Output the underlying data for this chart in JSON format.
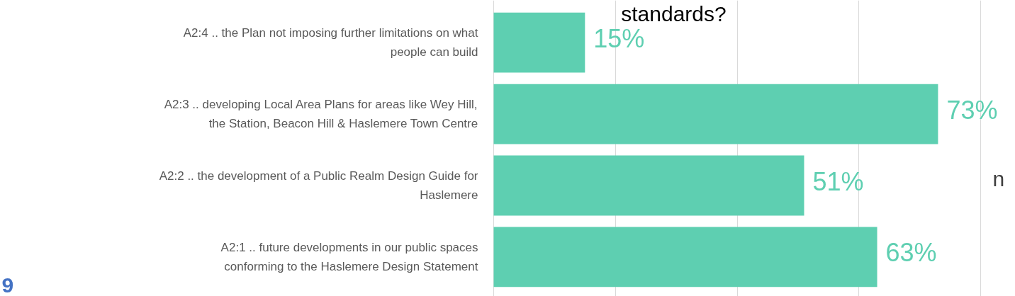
{
  "chart_data": {
    "type": "bar",
    "orientation": "horizontal",
    "title": "standards?",
    "categories": [
      "A2:4 .. the Plan not imposing further limitations on what\npeople can build",
      "A2:3 .. developing Local Area Plans for areas like Wey Hill,\nthe Station, Beacon Hill & Haslemere Town Centre",
      "A2:2 .. the development of a Public Realm Design Guide for\nHaslemere",
      "A2:1 .. future developments in our public spaces\nconforming to the Haslemere Design Statement"
    ],
    "values": [
      15,
      73,
      51,
      63
    ],
    "color": "#5ecfb1",
    "value_labels": [
      "15%",
      "73%",
      "51%",
      "63%"
    ],
    "grid": "x",
    "tick_labels": "y",
    "annotations": [
      "n",
      "9"
    ]
  }
}
